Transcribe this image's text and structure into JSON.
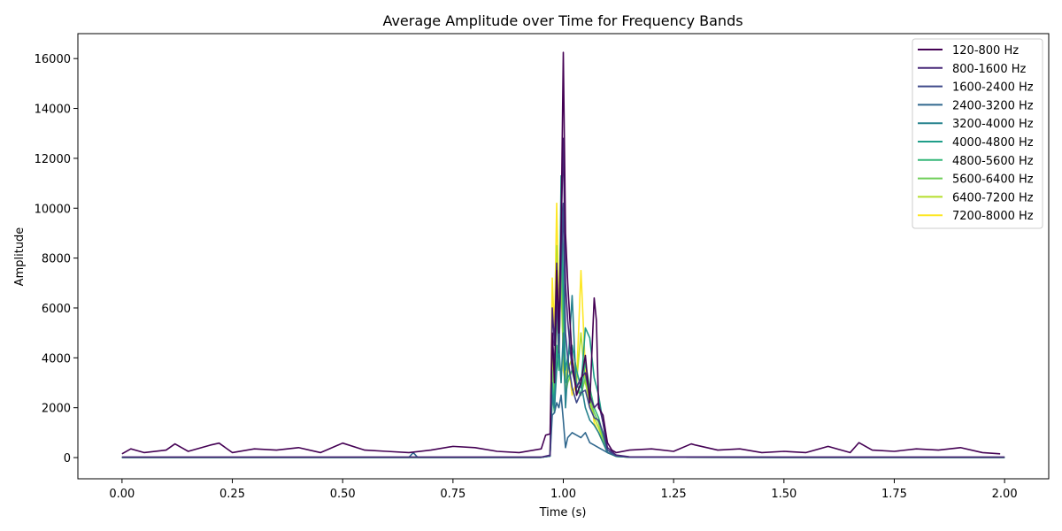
{
  "chart_data": {
    "type": "line",
    "title": "Average Amplitude over Time for Frequency Bands",
    "xlabel": "Time (s)",
    "ylabel": "Amplitude",
    "xlim": [
      -0.1,
      2.1
    ],
    "ylim": [
      -850,
      17000
    ],
    "xticks": [
      0.0,
      0.25,
      0.5,
      0.75,
      1.0,
      1.25,
      1.5,
      1.75,
      2.0
    ],
    "xtick_labels": [
      "0.00",
      "0.25",
      "0.50",
      "0.75",
      "1.00",
      "1.25",
      "1.50",
      "1.75",
      "2.00"
    ],
    "yticks": [
      0,
      2000,
      4000,
      6000,
      8000,
      10000,
      12000,
      14000,
      16000
    ],
    "ytick_labels": [
      "0",
      "2000",
      "4000",
      "6000",
      "8000",
      "10000",
      "12000",
      "14000",
      "16000"
    ],
    "grid": false,
    "legend_position": "top-right",
    "series": [
      {
        "name": "120-800 Hz",
        "color": "#440154",
        "x": [
          0.0,
          0.02,
          0.05,
          0.1,
          0.12,
          0.15,
          0.2,
          0.22,
          0.25,
          0.3,
          0.35,
          0.4,
          0.45,
          0.5,
          0.55,
          0.6,
          0.65,
          0.7,
          0.75,
          0.8,
          0.85,
          0.9,
          0.95,
          0.96,
          0.97,
          0.975,
          0.98,
          0.985,
          0.99,
          0.995,
          1.0,
          1.005,
          1.01,
          1.02,
          1.03,
          1.04,
          1.05,
          1.06,
          1.07,
          1.075,
          1.08,
          1.09,
          1.1,
          1.11,
          1.12,
          1.15,
          1.2,
          1.25,
          1.29,
          1.3,
          1.35,
          1.4,
          1.45,
          1.5,
          1.55,
          1.6,
          1.65,
          1.67,
          1.7,
          1.75,
          1.8,
          1.85,
          1.9,
          1.95,
          1.99
        ],
        "values": [
          150,
          350,
          200,
          300,
          550,
          250,
          500,
          580,
          200,
          350,
          300,
          400,
          200,
          580,
          300,
          250,
          200,
          300,
          450,
          400,
          250,
          200,
          350,
          900,
          950,
          5000,
          3000,
          7500,
          5000,
          9000,
          16250,
          9000,
          7000,
          4000,
          2500,
          3000,
          4100,
          2200,
          6400,
          5500,
          2000,
          1700,
          600,
          300,
          200,
          300,
          350,
          250,
          550,
          500,
          300,
          350,
          200,
          250,
          200,
          450,
          200,
          600,
          300,
          250,
          350,
          300,
          400,
          200,
          150
        ]
      },
      {
        "name": "800-1600 Hz",
        "color": "#482878",
        "x": [
          0.0,
          0.5,
          0.95,
          0.97,
          0.975,
          0.98,
          0.985,
          0.99,
          0.995,
          1.0,
          1.005,
          1.01,
          1.02,
          1.03,
          1.04,
          1.05,
          1.06,
          1.07,
          1.08,
          1.09,
          1.1,
          1.12,
          1.15,
          1.5,
          2.0
        ],
        "values": [
          20,
          20,
          20,
          100,
          6000,
          4500,
          7800,
          5200,
          9000,
          12800,
          7000,
          5500,
          3500,
          2800,
          3200,
          3400,
          2500,
          2000,
          2200,
          1400,
          400,
          100,
          30,
          20,
          20
        ]
      },
      {
        "name": "1600-2400 Hz",
        "color": "#3e4989",
        "x": [
          0.0,
          0.5,
          0.95,
          0.97,
          0.975,
          0.98,
          0.985,
          0.99,
          0.995,
          1.0,
          1.005,
          1.01,
          1.02,
          1.03,
          1.04,
          1.05,
          1.06,
          1.07,
          1.08,
          1.09,
          1.1,
          1.12,
          1.15,
          1.5,
          2.0
        ],
        "values": [
          15,
          15,
          15,
          80,
          5000,
          3500,
          6500,
          4200,
          7500,
          10200,
          5000,
          4000,
          2800,
          2200,
          2600,
          2700,
          2000,
          1600,
          1500,
          1000,
          300,
          80,
          20,
          15,
          15
        ]
      },
      {
        "name": "2400-3200 Hz",
        "color": "#31688e",
        "x": [
          0.0,
          0.5,
          0.65,
          0.66,
          0.67,
          0.95,
          0.97,
          0.975,
          0.98,
          0.985,
          0.99,
          0.995,
          1.0,
          1.005,
          1.01,
          1.02,
          1.03,
          1.04,
          1.05,
          1.06,
          1.07,
          1.08,
          1.09,
          1.1,
          1.12,
          1.15,
          1.5,
          2.0
        ],
        "values": [
          10,
          10,
          10,
          200,
          10,
          10,
          60,
          1700,
          1800,
          2200,
          2000,
          2500,
          1500,
          400,
          800,
          1000,
          900,
          800,
          1000,
          600,
          500,
          400,
          300,
          200,
          60,
          15,
          10,
          10
        ]
      },
      {
        "name": "3200-4000 Hz",
        "color": "#26828e",
        "x": [
          0.0,
          0.5,
          0.95,
          0.97,
          0.975,
          0.98,
          0.985,
          0.99,
          0.995,
          1.0,
          1.005,
          1.01,
          1.02,
          1.03,
          1.04,
          1.05,
          1.06,
          1.07,
          1.08,
          1.09,
          1.1,
          1.12,
          1.15,
          1.5,
          2.0
        ],
        "values": [
          10,
          10,
          10,
          60,
          2500,
          2000,
          3500,
          4500,
          3000,
          5000,
          2000,
          3500,
          6500,
          2500,
          3000,
          2000,
          1500,
          1300,
          1000,
          600,
          200,
          50,
          15,
          10,
          10
        ]
      },
      {
        "name": "4000-4800 Hz",
        "color": "#1f9e89",
        "x": [
          0.0,
          0.5,
          0.95,
          0.97,
          0.975,
          0.98,
          0.985,
          0.99,
          0.995,
          1.0,
          1.005,
          1.01,
          1.02,
          1.03,
          1.04,
          1.05,
          1.06,
          1.07,
          1.08,
          1.09,
          1.1,
          1.12,
          1.15,
          1.5,
          2.0
        ],
        "values": [
          10,
          10,
          10,
          60,
          3000,
          2000,
          6800,
          4000,
          11300,
          7000,
          3500,
          4000,
          4500,
          3500,
          2800,
          5200,
          4800,
          3200,
          2500,
          1400,
          300,
          60,
          15,
          10,
          10
        ]
      },
      {
        "name": "4800-5600 Hz",
        "color": "#35b779",
        "x": [
          0.0,
          0.5,
          0.95,
          0.97,
          0.975,
          0.98,
          0.985,
          0.99,
          0.995,
          1.0,
          1.005,
          1.01,
          1.02,
          1.03,
          1.04,
          1.05,
          1.06,
          1.07,
          1.08,
          1.09,
          1.1,
          1.12,
          1.15,
          1.5,
          2.0
        ],
        "values": [
          10,
          10,
          10,
          60,
          2500,
          1800,
          4500,
          3500,
          9500,
          6000,
          3000,
          3200,
          3500,
          3000,
          2500,
          3800,
          2800,
          2000,
          1600,
          900,
          200,
          50,
          15,
          10,
          10
        ]
      },
      {
        "name": "5600-6400 Hz",
        "color": "#6ece58",
        "x": [
          0.0,
          0.5,
          0.95,
          0.97,
          0.975,
          0.98,
          0.985,
          0.99,
          0.995,
          1.0,
          1.005,
          1.01,
          1.02,
          1.03,
          1.04,
          1.05,
          1.06,
          1.07,
          1.08,
          1.09,
          1.1,
          1.12,
          1.15,
          1.5,
          2.0
        ],
        "values": [
          10,
          10,
          10,
          60,
          3500,
          2500,
          6000,
          3800,
          8000,
          4500,
          2500,
          3000,
          3500,
          2700,
          2500,
          3200,
          2400,
          1800,
          1400,
          800,
          200,
          50,
          15,
          10,
          10
        ]
      },
      {
        "name": "6400-7200 Hz",
        "color": "#b5de2b",
        "x": [
          0.0,
          0.5,
          0.95,
          0.97,
          0.975,
          0.98,
          0.985,
          0.99,
          0.995,
          1.0,
          1.005,
          1.01,
          1.02,
          1.03,
          1.04,
          1.05,
          1.06,
          1.07,
          1.08,
          1.09,
          1.1,
          1.12,
          1.15,
          1.5,
          2.0
        ],
        "values": [
          10,
          10,
          10,
          60,
          4000,
          3000,
          8500,
          5000,
          7000,
          4000,
          2500,
          3500,
          4000,
          3000,
          5000,
          3000,
          2200,
          1600,
          1200,
          700,
          200,
          50,
          15,
          10,
          10
        ]
      },
      {
        "name": "7200-8000 Hz",
        "color": "#fde725",
        "x": [
          0.0,
          0.5,
          0.95,
          0.97,
          0.975,
          0.98,
          0.985,
          0.99,
          0.995,
          1.0,
          1.005,
          1.01,
          1.02,
          1.03,
          1.04,
          1.05,
          1.06,
          1.07,
          1.08,
          1.09,
          1.1,
          1.12,
          1.15,
          1.5,
          2.0
        ],
        "values": [
          10,
          10,
          10,
          60,
          7200,
          5000,
          10200,
          6000,
          9000,
          3500,
          3000,
          4000,
          2500,
          3000,
          7500,
          3500,
          2800,
          1400,
          1000,
          600,
          200,
          50,
          15,
          10,
          10
        ]
      }
    ]
  }
}
